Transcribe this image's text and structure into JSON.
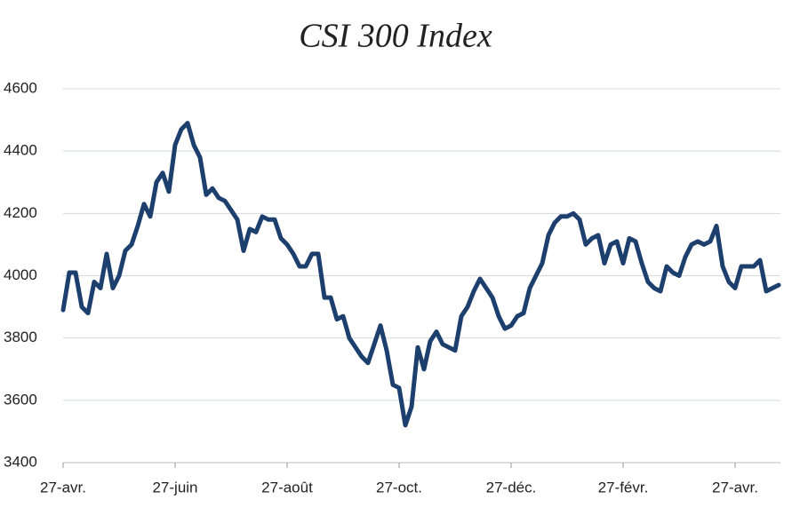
{
  "chart_data": {
    "type": "line",
    "title": "CSI 300 Index",
    "categories": [
      "27-avr.",
      null,
      null,
      null,
      null,
      null,
      null,
      null,
      null,
      null,
      null,
      null,
      null,
      null,
      null,
      null,
      null,
      null,
      "27-juin",
      null,
      null,
      null,
      null,
      null,
      null,
      null,
      null,
      null,
      null,
      null,
      null,
      null,
      null,
      null,
      null,
      null,
      "27-août",
      null,
      null,
      null,
      null,
      null,
      null,
      null,
      null,
      null,
      null,
      null,
      null,
      null,
      null,
      null,
      null,
      null,
      "27-oct.",
      null,
      null,
      null,
      null,
      null,
      null,
      null,
      null,
      null,
      null,
      null,
      null,
      null,
      null,
      null,
      null,
      null,
      "27-déc.",
      null,
      null,
      null,
      null,
      null,
      null,
      null,
      null,
      null,
      null,
      null,
      null,
      null,
      null,
      null,
      null,
      null,
      "27-févr.",
      null,
      null,
      null,
      null,
      null,
      null,
      null,
      null,
      null,
      null,
      null,
      null,
      null,
      null,
      null,
      null,
      null,
      "27-avr.",
      null,
      null,
      null,
      null,
      null,
      null,
      null
    ],
    "series": [
      {
        "name": "CSI 300",
        "color": "#1d3f6e",
        "values": [
          3890,
          4010,
          4010,
          3900,
          3880,
          3980,
          3960,
          4070,
          3960,
          4000,
          4080,
          4100,
          4160,
          4230,
          4190,
          4300,
          4330,
          4270,
          4420,
          4470,
          4490,
          4420,
          4380,
          4260,
          4280,
          4250,
          4240,
          4210,
          4180,
          4080,
          4150,
          4140,
          4190,
          4180,
          4180,
          4120,
          4100,
          4070,
          4030,
          4030,
          4070,
          4070,
          3930,
          3930,
          3860,
          3870,
          3800,
          3770,
          3740,
          3720,
          3780,
          3840,
          3760,
          3650,
          3640,
          3520,
          3580,
          3770,
          3700,
          3790,
          3820,
          3780,
          3770,
          3760,
          3870,
          3900,
          3950,
          3990,
          3960,
          3930,
          3870,
          3830,
          3840,
          3870,
          3880,
          3960,
          4000,
          4040,
          4130,
          4170,
          4190,
          4190,
          4200,
          4180,
          4100,
          4120,
          4130,
          4040,
          4100,
          4110,
          4040,
          4120,
          4110,
          4040,
          3980,
          3960,
          3950,
          4030,
          4010,
          4000,
          4060,
          4100,
          4110,
          4100,
          4110,
          4160,
          4030,
          3980,
          3960,
          4030,
          4030,
          4030,
          4050,
          3950,
          3960,
          3970
        ]
      }
    ],
    "ylim": [
      3400,
      4600
    ],
    "yticks": [
      3400,
      3600,
      3800,
      4000,
      4200,
      4400,
      4600
    ],
    "grid": true
  }
}
